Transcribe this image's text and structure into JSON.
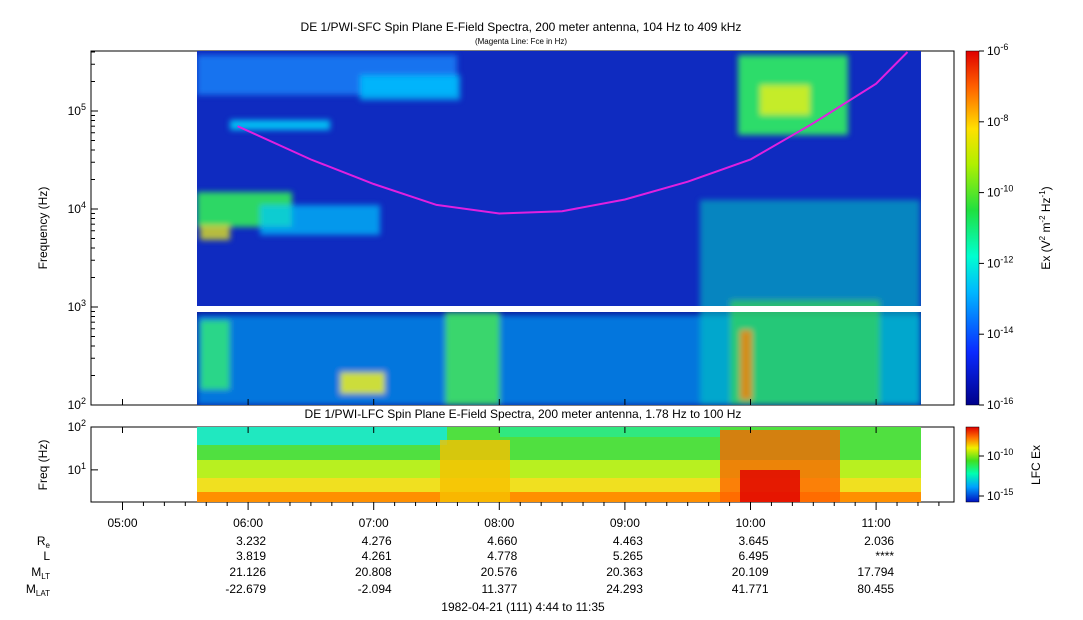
{
  "chart_data": [
    {
      "type": "heatmap",
      "title": "DE 1/PWI-SFC  Spin Plane E-Field Spectra, 200 meter antenna, 104 Hz to 409 kHz",
      "subtitle": "(Magenta Line: Fce in Hz)",
      "ylabel": "Frequency (Hz)",
      "y_scale": "log",
      "ylim": [
        100,
        409000
      ],
      "y_ticks": [
        "10^2",
        "10^3",
        "10^4",
        "10^5"
      ],
      "colorbar": {
        "label_parts": [
          "Ex (V",
          "2",
          " m",
          "-2",
          " Hz",
          "-1",
          ")"
        ],
        "scale": "log",
        "range": [
          1e-16,
          1e-06
        ],
        "ticks": [
          "10^-6",
          "10^-8",
          "10^-10",
          "10^-12",
          "10^-14",
          "10^-16"
        ]
      },
      "data_gap": "no data between about 0.93 kHz and 1.05 kHz",
      "fce_line": {
        "label": "Fce",
        "x": [
          "05:55",
          "06:30",
          "07:00",
          "07:30",
          "08:00",
          "08:30",
          "09:00",
          "09:30",
          "10:00",
          "10:30",
          "11:00",
          "11:15"
        ],
        "y": [
          70000,
          32000,
          18000,
          11000,
          9000,
          9500,
          12500,
          19000,
          32000,
          75000,
          190000,
          400000
        ]
      }
    },
    {
      "type": "heatmap",
      "title": "DE 1/PWI-LFC  Spin Plane E-Field Spectra, 200 meter antenna, 1.78 Hz to 100 Hz",
      "ylabel": "Freq (Hz)",
      "y_scale": "log",
      "ylim": [
        1.78,
        100
      ],
      "y_ticks": [
        "10^1",
        "10^2"
      ],
      "colorbar": {
        "label": "LFC Ex",
        "scale": "log",
        "ticks": [
          "10^-10",
          "10^-15"
        ]
      }
    }
  ],
  "time_axis": {
    "ticks": [
      "05:00",
      "06:00",
      "07:00",
      "08:00",
      "09:00",
      "10:00",
      "11:00"
    ],
    "data_start": "05:55",
    "data_end": "11:21"
  },
  "ephemeris": {
    "rows": [
      {
        "label": "R",
        "sub": "e",
        "values": [
          "3.232",
          "4.276",
          "4.660",
          "4.463",
          "3.645",
          "2.036"
        ]
      },
      {
        "label": "L",
        "sub": "",
        "values": [
          "3.819",
          "4.261",
          "4.778",
          "5.265",
          "6.495",
          "****"
        ]
      },
      {
        "label": "M",
        "sub": "LT",
        "values": [
          "21.126",
          "20.808",
          "20.576",
          "20.363",
          "20.109",
          "17.794"
        ]
      },
      {
        "label": "M",
        "sub": "LAT",
        "values": [
          "-22.679",
          "-2.094",
          "11.377",
          "24.293",
          "41.771",
          "80.455"
        ]
      }
    ]
  },
  "footer": "1982-04-21 (111) 4:44 to 11:35",
  "colors": {
    "background_low": "#0a1a9e",
    "fce_line": "#e020e0"
  }
}
